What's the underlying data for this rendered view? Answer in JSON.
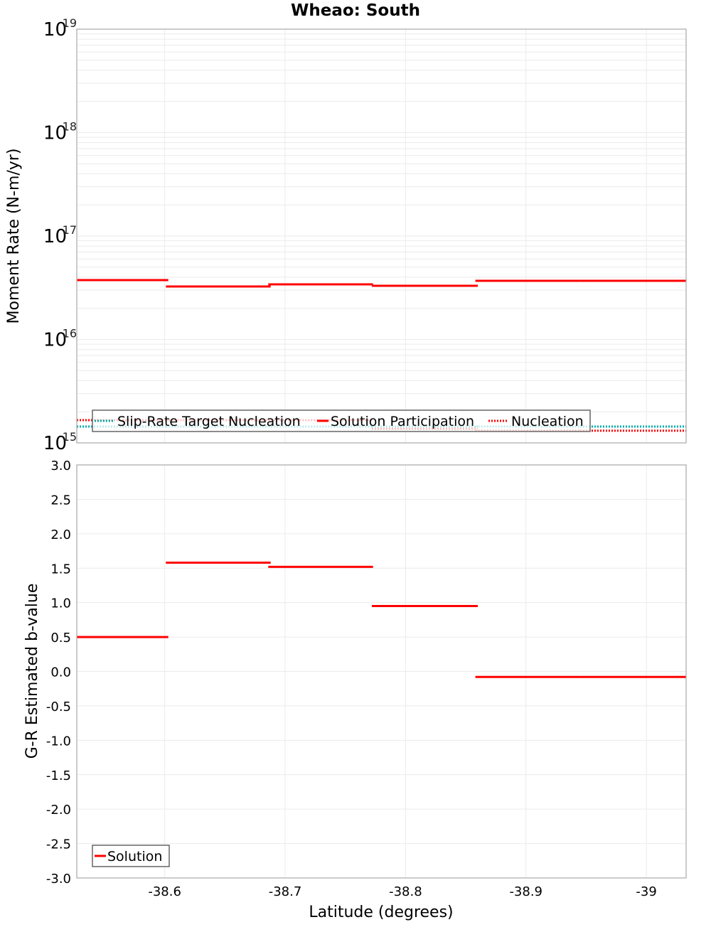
{
  "chart_data": [
    {
      "type": "line",
      "title": "Wheao: South",
      "xlabel": "",
      "ylabel": "Moment Rate (N-m/yr)",
      "yscale": "log",
      "ylim": [
        1000000000000000.0,
        1e+19
      ],
      "xlim": [
        -38.527,
        -39.033
      ],
      "y_ticks": [
        {
          "base": "10",
          "exp": "15",
          "value": 1000000000000000.0
        },
        {
          "base": "10",
          "exp": "16",
          "value": 1e+16
        },
        {
          "base": "10",
          "exp": "17",
          "value": 1e+17
        },
        {
          "base": "10",
          "exp": "18",
          "value": 1e+18
        },
        {
          "base": "10",
          "exp": "19",
          "value": 1e+19
        }
      ],
      "grid": true,
      "legend_position": "bottom-left-inside",
      "x_segments": [
        [
          -38.527,
          -38.603
        ],
        [
          -38.601,
          -38.688
        ],
        [
          -38.686,
          -38.773
        ],
        [
          -38.772,
          -38.86
        ],
        [
          -38.858,
          -38.945
        ],
        [
          -38.945,
          -39.033
        ]
      ],
      "series": [
        {
          "name": "Slip-Rate Target Nucleation",
          "color": "#00aaaa",
          "style": "dotted",
          "values": [
            1440000000000000.0,
            1440000000000000.0,
            1440000000000000.0,
            1440000000000000.0,
            1440000000000000.0,
            1440000000000000.0
          ]
        },
        {
          "name": "Solution Participation",
          "color": "#ff0000",
          "style": "solid",
          "values": [
            3.75e+16,
            3.25e+16,
            3.41e+16,
            3.3e+16,
            3.69e+16,
            3.69e+16
          ]
        },
        {
          "name": "Nucleation",
          "color": "#ff0000",
          "style": "dotted",
          "values": [
            1660000000000000.0,
            1660000000000000.0,
            1660000000000000.0,
            1370000000000000.0,
            1310000000000000.0,
            1310000000000000.0
          ]
        }
      ]
    },
    {
      "type": "line",
      "title": "",
      "xlabel": "Latitude (degrees)",
      "ylabel": "G-R Estimated b-value",
      "ylim": [
        -3.0,
        3.0
      ],
      "xlim": [
        -38.527,
        -39.033
      ],
      "y_ticks": [
        "3.0",
        "2.5",
        "2.0",
        "1.5",
        "1.0",
        "0.5",
        "0.0",
        "-0.5",
        "-1.0",
        "-1.5",
        "-2.0",
        "-2.5",
        "-3.0"
      ],
      "x_ticks": [
        {
          "label": "-38.6",
          "value": -38.6
        },
        {
          "label": "-38.7",
          "value": -38.7
        },
        {
          "label": "-38.8",
          "value": -38.8
        },
        {
          "label": "-38.9",
          "value": -38.9
        },
        {
          "label": "-39",
          "value": -39.0
        }
      ],
      "grid": true,
      "legend_position": "bottom-left-inside",
      "x_segments": [
        [
          -38.527,
          -38.603
        ],
        [
          -38.601,
          -38.688
        ],
        [
          -38.686,
          -38.773
        ],
        [
          -38.772,
          -38.86
        ],
        [
          -38.858,
          -38.945
        ],
        [
          -38.945,
          -39.033
        ]
      ],
      "series": [
        {
          "name": "Solution",
          "color": "#ff0000",
          "style": "solid",
          "values": [
            0.5,
            1.58,
            1.52,
            0.95,
            -0.08,
            -0.08
          ]
        }
      ]
    }
  ],
  "figure": {
    "title": "Wheao: South",
    "top_ylabel": "Moment Rate (N-m/yr)",
    "bottom_ylabel": "G-R Estimated b-value",
    "xlabel": "Latitude (degrees)",
    "top_legend": [
      "Slip-Rate Target Nucleation",
      "Solution Participation",
      "Nucleation"
    ],
    "bottom_legend": [
      "Solution"
    ]
  }
}
